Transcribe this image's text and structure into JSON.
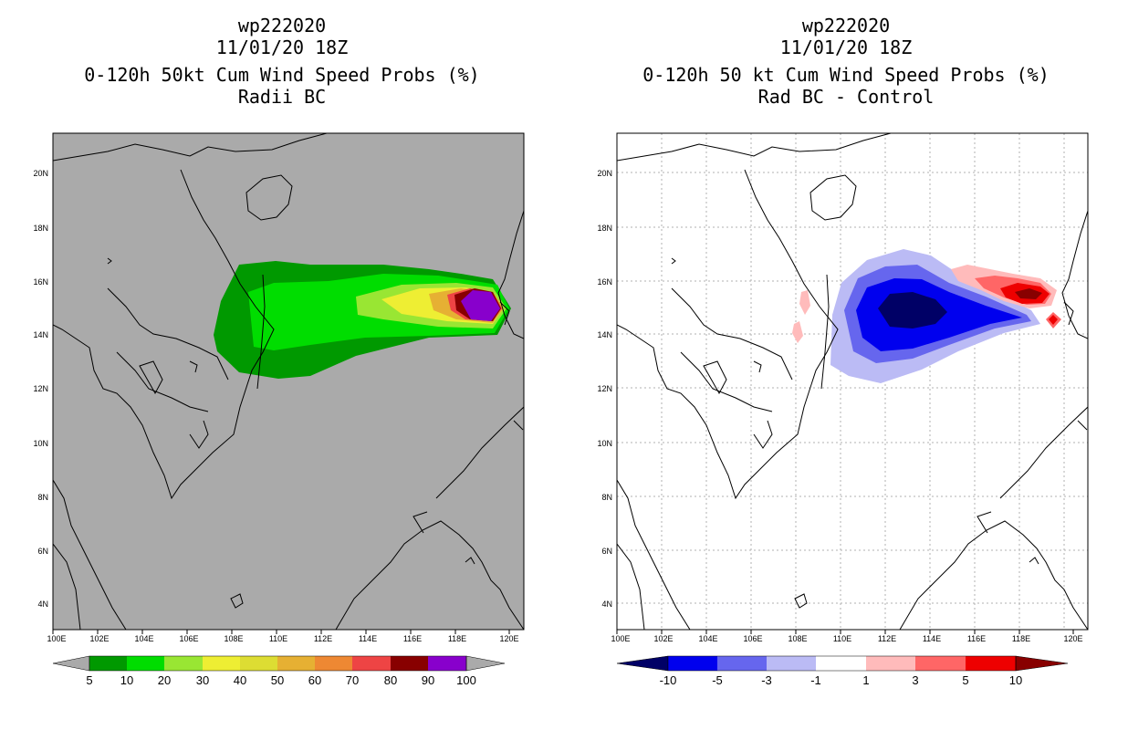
{
  "panels": [
    {
      "storm_id": "wp222020",
      "datetime": "11/01/20 18Z",
      "title": "0-120h 50kt Cum Wind Speed Probs (%)",
      "subtitle": "Radii BC",
      "colorbar_labels": [
        "5",
        "10",
        "20",
        "30",
        "40",
        "50",
        "60",
        "70",
        "80",
        "90",
        "100"
      ],
      "colorbar_colors": [
        "#009900",
        "#00dd00",
        "#99e633",
        "#eeee33",
        "#dddd33",
        "#e6b033",
        "#ee8833",
        "#ee4444",
        "#880000",
        "#8800cc"
      ],
      "background_color": "#aaaaaa"
    },
    {
      "storm_id": "wp222020",
      "datetime": "11/01/20 18Z",
      "title": "0-120h 50 kt Cum Wind Speed Probs (%)",
      "subtitle": "Rad BC - Control",
      "colorbar_labels": [
        "-10",
        "-5",
        "-3",
        "-1",
        "1",
        "3",
        "5",
        "10"
      ],
      "colorbar_colors": [
        "#000066",
        "#0000ee",
        "#6666ee",
        "#bbbbf5",
        "#ffffff",
        "#ffbbbb",
        "#ff6666",
        "#ee0000",
        "#880000"
      ],
      "background_color": "#ffffff"
    }
  ],
  "axes": {
    "lon_labels": [
      "100E",
      "102E",
      "104E",
      "106E",
      "108E",
      "110E",
      "112E",
      "114E",
      "116E",
      "118E",
      "120E"
    ],
    "lat_labels": [
      "4N",
      "6N",
      "8N",
      "10N",
      "12N",
      "14N",
      "16N",
      "18N",
      "20N"
    ]
  }
}
